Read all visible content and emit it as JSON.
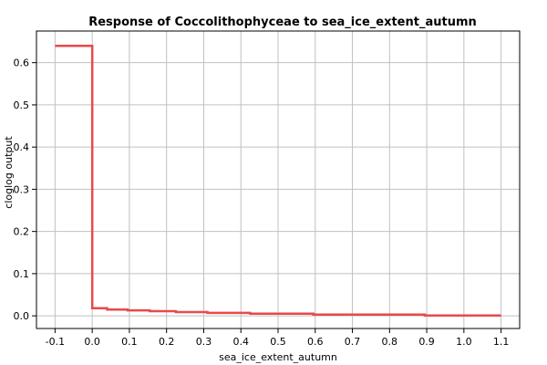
{
  "chart_data": {
    "type": "line",
    "title": "Response of Coccolithophyceae to sea_ice_extent_autumn",
    "xlabel": "sea_ice_extent_autumn",
    "ylabel": "cloglog output",
    "xlim": [
      -0.15,
      1.15
    ],
    "ylim": [
      -0.03,
      0.675
    ],
    "x_ticks": [
      -0.1,
      0.0,
      0.1,
      0.2,
      0.3,
      0.4,
      0.5,
      0.6,
      0.7,
      0.8,
      0.9,
      1.0,
      1.1
    ],
    "x_tick_labels": [
      "-0.1",
      "0.0",
      "0.1",
      "0.2",
      "0.3",
      "0.4",
      "0.5",
      "0.6",
      "0.7",
      "0.8",
      "0.9",
      "1.0",
      "1.1"
    ],
    "y_ticks": [
      0.0,
      0.1,
      0.2,
      0.3,
      0.4,
      0.5,
      0.6
    ],
    "y_tick_labels": [
      "0.0",
      "0.1",
      "0.2",
      "0.3",
      "0.4",
      "0.5",
      "0.6"
    ],
    "grid": true,
    "step": true,
    "series": [
      {
        "color": "#e84a4a",
        "x": [
          -0.1,
          0.0,
          0.0,
          0.04,
          0.04,
          0.095,
          0.095,
          0.155,
          0.155,
          0.225,
          0.225,
          0.31,
          0.31,
          0.425,
          0.425,
          0.595,
          0.595,
          0.895,
          0.895,
          1.1
        ],
        "y": [
          0.64,
          0.64,
          0.018,
          0.018,
          0.015,
          0.015,
          0.013,
          0.013,
          0.011,
          0.011,
          0.009,
          0.009,
          0.007,
          0.007,
          0.005,
          0.005,
          0.003,
          0.003,
          0.001,
          0.001
        ]
      }
    ]
  }
}
